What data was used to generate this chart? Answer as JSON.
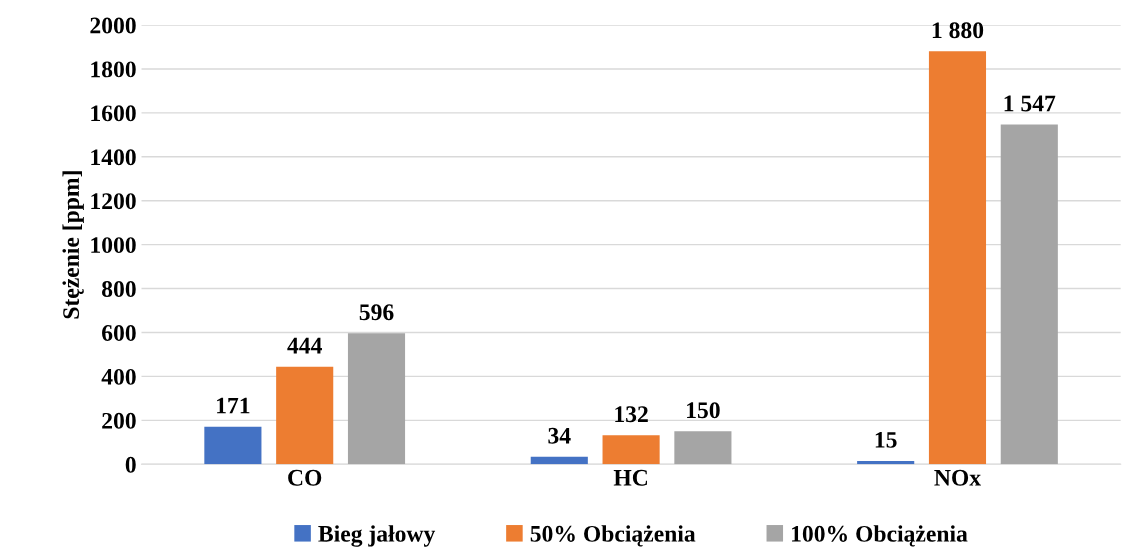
{
  "chart_data": {
    "type": "bar",
    "ylabel": "Stężenie [ppm]",
    "categories": [
      "CO",
      "HC",
      "NOx"
    ],
    "series": [
      {
        "name": "Bieg jałowy",
        "color": "#4472c4",
        "values": [
          171,
          34,
          15
        ],
        "value_labels": [
          "171",
          "34",
          "15"
        ]
      },
      {
        "name": "50% Obciążenia",
        "color": "#ed7d31",
        "values": [
          444,
          132,
          1880
        ],
        "value_labels": [
          "444",
          "132",
          "1 880"
        ]
      },
      {
        "name": "100% Obciążenia",
        "color": "#a5a5a5",
        "values": [
          596,
          150,
          1547
        ],
        "value_labels": [
          "596",
          "150",
          "1 547"
        ]
      }
    ],
    "ylim": [
      0,
      2000
    ],
    "yticks": [
      0,
      200,
      400,
      600,
      800,
      1000,
      1200,
      1400,
      1600,
      1800,
      2000
    ],
    "grid": "y",
    "legend": "bottom"
  }
}
